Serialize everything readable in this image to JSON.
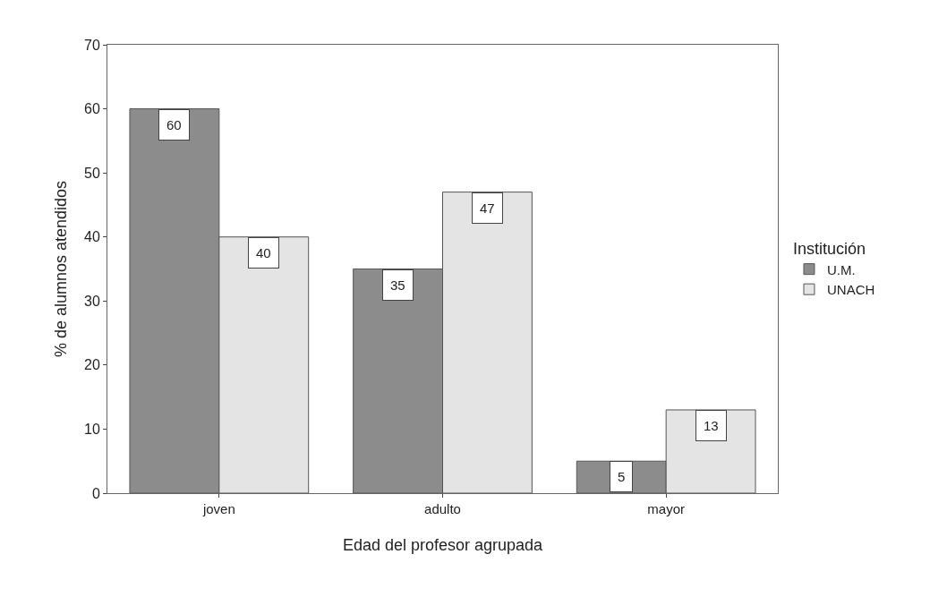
{
  "chart_data": {
    "type": "bar",
    "xlabel": "Edad del profesor agrupada",
    "ylabel": "% de alumnos atendidos",
    "legend_title": "Institución",
    "categories": [
      "joven",
      "adulto",
      "mayor"
    ],
    "series": [
      {
        "name": "U.M.",
        "color": "#8c8c8c",
        "values": [
          60,
          35,
          5
        ]
      },
      {
        "name": "UNACH",
        "color": "#e4e4e4",
        "values": [
          40,
          47,
          13
        ]
      }
    ],
    "ylim": [
      0,
      70
    ],
    "yticks": [
      0,
      10,
      20,
      30,
      40,
      50,
      60,
      70
    ],
    "grid": false,
    "legend": "right",
    "data_labels": true
  }
}
